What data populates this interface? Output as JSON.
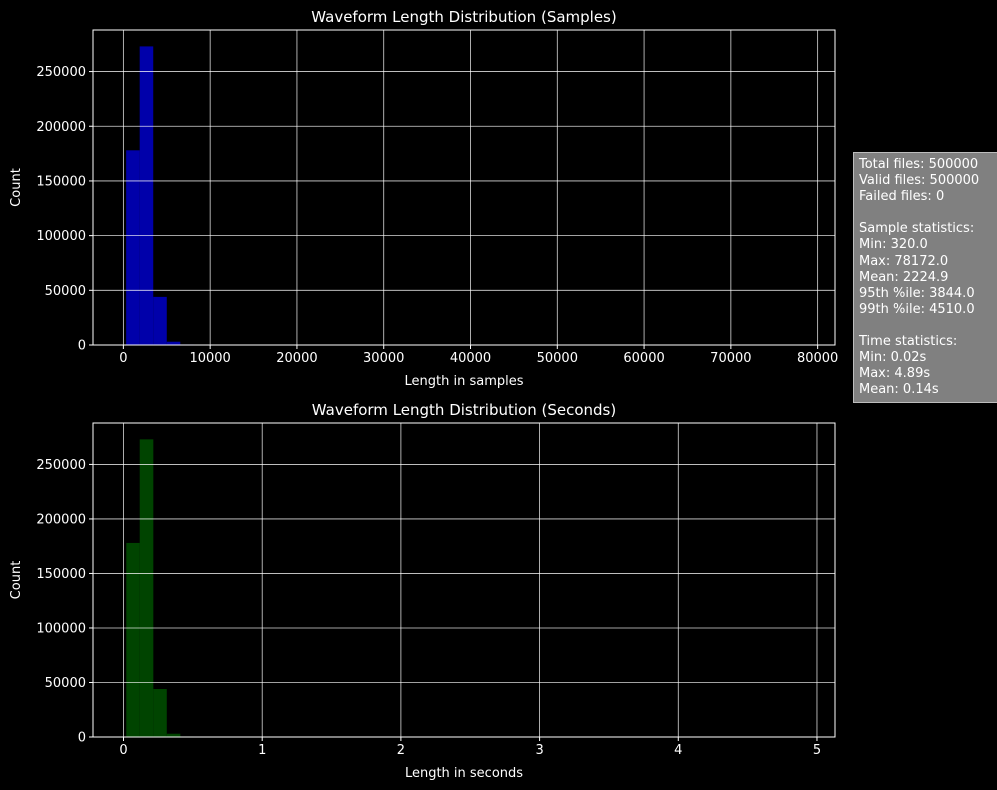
{
  "chart_data": [
    {
      "type": "bar",
      "title": "Waveform Length Distribution (Samples)",
      "xlabel": "Length in samples",
      "ylabel": "Count",
      "xlim": [
        -3500,
        82000
      ],
      "ylim": [
        0,
        288000
      ],
      "xticks": [
        0,
        10000,
        20000,
        30000,
        40000,
        50000,
        60000,
        70000,
        80000
      ],
      "yticks": [
        0,
        50000,
        100000,
        150000,
        200000,
        250000
      ],
      "grid": true,
      "color": "#0000c8",
      "bins": [
        {
          "start": 320,
          "end": 1880,
          "count": 178000
        },
        {
          "start": 1880,
          "end": 3440,
          "count": 273000
        },
        {
          "start": 3440,
          "end": 5000,
          "count": 44000
        },
        {
          "start": 5000,
          "end": 6560,
          "count": 3000
        },
        {
          "start": 6560,
          "end": 8120,
          "count": 500
        }
      ]
    },
    {
      "type": "bar",
      "title": "Waveform Length Distribution (Seconds)",
      "xlabel": "Length in seconds",
      "ylabel": "Count",
      "xlim": [
        -0.22,
        5.13
      ],
      "ylim": [
        0,
        288000
      ],
      "xticks": [
        0,
        1,
        2,
        3,
        4,
        5
      ],
      "yticks": [
        0,
        50000,
        100000,
        150000,
        200000,
        250000
      ],
      "grid": true,
      "color": "#005000",
      "bins": [
        {
          "start": 0.02,
          "end": 0.117,
          "count": 178000
        },
        {
          "start": 0.117,
          "end": 0.215,
          "count": 273000
        },
        {
          "start": 0.215,
          "end": 0.312,
          "count": 44000
        },
        {
          "start": 0.312,
          "end": 0.41,
          "count": 3000
        },
        {
          "start": 0.41,
          "end": 0.507,
          "count": 500
        }
      ]
    }
  ],
  "stats_box": {
    "lines": [
      "Total files: 500000",
      "Valid files: 500000",
      "Failed files: 0",
      "",
      "Sample statistics:",
      "Min: 320.0",
      "Max: 78172.0",
      "Mean: 2224.9",
      "95th %ile: 3844.0",
      "99th %ile: 4510.0",
      "",
      "Time statistics:",
      "Min: 0.02s",
      "Max: 4.89s",
      "Mean: 0.14s"
    ]
  }
}
